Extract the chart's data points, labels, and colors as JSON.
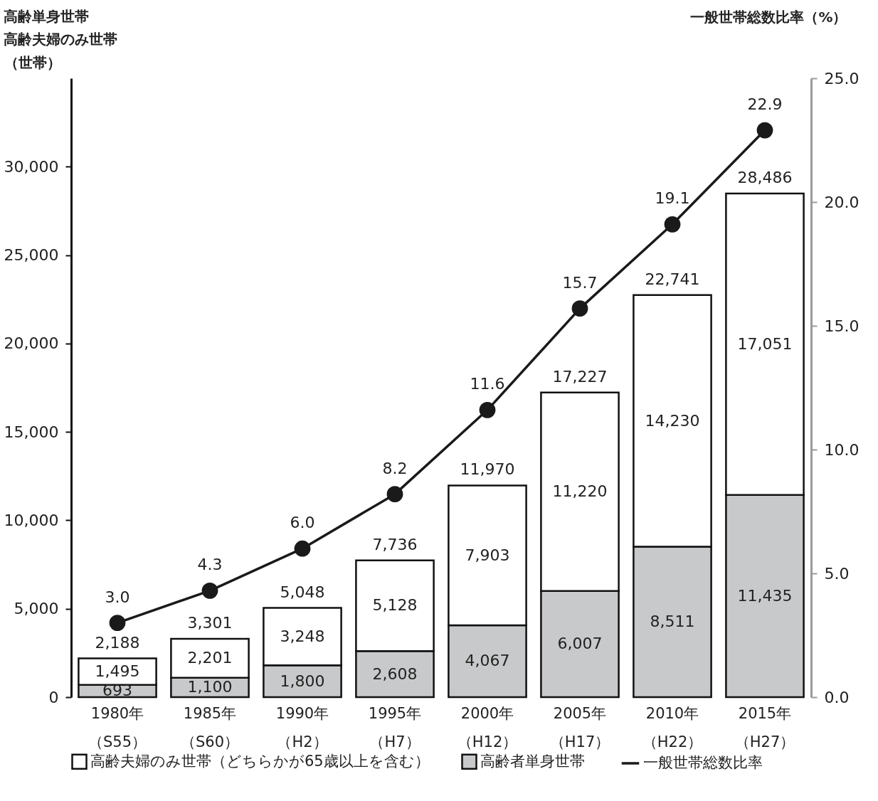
{
  "chart_data": {
    "type": "bar",
    "stacked": true,
    "categories": [
      "1980年（S55）",
      "1985年（S60）",
      "1990年（H2）",
      "1995年（H7）",
      "2000年（H12）",
      "2005年（H17）",
      "2010年（H22）",
      "2015年（H27）"
    ],
    "annotations": [
      "高齢単身世帯",
      "高齢夫婦のみ世帯"
    ],
    "ylabel": "（世帯）",
    "y2label": "一般世帯総数比率（%）",
    "ylim": [
      0,
      35000
    ],
    "yticks": [
      0,
      {
        "value": 5000,
        "label": "5,000"
      },
      {
        "value": 10000,
        "label": "10,000"
      },
      {
        "value": 15000,
        "label": "15,000"
      },
      {
        "value": 20000,
        "label": "20,000"
      },
      {
        "value": 25000,
        "label": "25,000"
      },
      {
        "value": 30000,
        "label": "30,000"
      }
    ],
    "y2lim": [
      0,
      25
    ],
    "y2ticks": [
      {
        "value": 0,
        "label": "0.0"
      },
      {
        "value": 5,
        "label": "5.0"
      },
      {
        "value": 10,
        "label": "10.0"
      },
      {
        "value": 15,
        "label": "15.0"
      },
      {
        "value": 20,
        "label": "20.0"
      },
      {
        "value": 25,
        "label": "25.0"
      }
    ],
    "series": [
      {
        "name": "高齢者単身世帯",
        "color": "#c8c9ca",
        "values": [
          693,
          1100,
          1800,
          2608,
          4067,
          6007,
          8511,
          11435
        ],
        "value_labels": [
          "693",
          "1,100",
          "1,800",
          "2,608",
          "4,067",
          "6,007",
          "8,511",
          "11,435"
        ]
      },
      {
        "name": "高齢夫婦のみ世帯（どちらかが65歳以上を含む）",
        "color": "#ffffff",
        "values": [
          1495,
          2201,
          3248,
          5128,
          7903,
          11220,
          14230,
          17051
        ],
        "value_labels": [
          "1,495",
          "2,201",
          "3,248",
          "5,128",
          "7,903",
          "11,220",
          "14,230",
          "17,051"
        ]
      },
      {
        "name": "一般世帯総数比率",
        "type": "line",
        "axis": "y2",
        "color": "#1a1a1a",
        "values": [
          3.0,
          4.3,
          6.0,
          8.2,
          11.6,
          15.7,
          19.1,
          22.9
        ],
        "value_labels": [
          "3.0",
          "4.3",
          "6.0",
          "8.2",
          "11.6",
          "15.7",
          "19.1",
          "22.9"
        ]
      }
    ],
    "totals": [
      "2,188",
      "3,301",
      "5,048",
      "7,736",
      "11,970",
      "17,227",
      "22,741",
      "28,486"
    ],
    "legend": "bottom",
    "marker": "circle",
    "grid": false
  }
}
